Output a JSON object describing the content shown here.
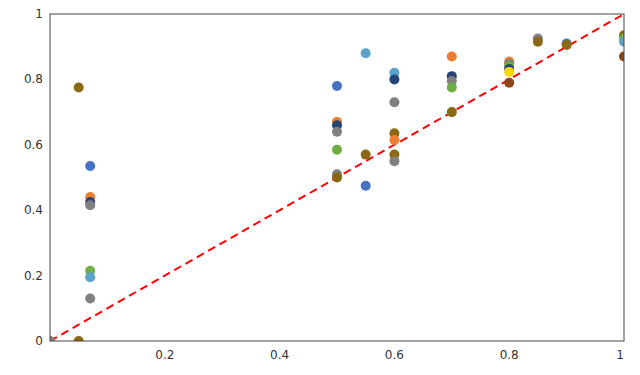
{
  "chart_data": {
    "type": "scatter",
    "xlim": [
      0,
      1
    ],
    "ylim": [
      0,
      1
    ],
    "xticks": [
      0.2,
      0.4,
      0.6,
      0.8,
      1
    ],
    "yticks": [
      0,
      0.2,
      0.4,
      0.6,
      0.8,
      1
    ],
    "grid": false,
    "series": [
      {
        "type": "line",
        "color": "red",
        "line_style": "dashed",
        "x": [
          0,
          1
        ],
        "values": [
          0,
          1
        ]
      },
      {
        "type": "scatter",
        "x": [
          0.0,
          0.05,
          0.05,
          0.07,
          0.07,
          0.07,
          0.07,
          0.07,
          0.07,
          0.07,
          0.5,
          0.5,
          0.5,
          0.5,
          0.5,
          0.5,
          0.5,
          0.55,
          0.55,
          0.55,
          0.6,
          0.6,
          0.6,
          0.6,
          0.6,
          0.6,
          0.6,
          0.7,
          0.7,
          0.7,
          0.7,
          0.7,
          0.8,
          0.8,
          0.8,
          0.8,
          0.8,
          0.8,
          0.85,
          0.85,
          0.9,
          0.9,
          1.0,
          1.0,
          1.0,
          1.0
        ],
        "values": [
          0.0,
          0.0,
          0.775,
          0.535,
          0.44,
          0.425,
          0.415,
          0.215,
          0.195,
          0.13,
          0.78,
          0.67,
          0.66,
          0.64,
          0.585,
          0.51,
          0.5,
          0.88,
          0.57,
          0.475,
          0.82,
          0.8,
          0.73,
          0.635,
          0.615,
          0.57,
          0.55,
          0.87,
          0.81,
          0.795,
          0.775,
          0.7,
          0.855,
          0.848,
          0.84,
          0.832,
          0.823,
          0.79,
          0.925,
          0.915,
          0.91,
          0.905,
          0.935,
          0.925,
          0.915,
          0.87
        ],
        "colors": [
          "#808080",
          "#8B6914",
          "#8B6914",
          "#4472C4",
          "#ED7D31",
          "#264478",
          "#808080",
          "#70AD47",
          "#5BA3C9",
          "#808080",
          "#4472C4",
          "#ED7D31",
          "#264478",
          "#808080",
          "#70AD47",
          "#808080",
          "#8B6914",
          "#5BA3C9",
          "#8B6914",
          "#4472C4",
          "#5BA3C9",
          "#264478",
          "#808080",
          "#8B6914",
          "#ED7D31",
          "#8B6914",
          "#808080",
          "#ED7D31",
          "#264478",
          "#808080",
          "#70AD47",
          "#8B6914",
          "#ED7D31",
          "#808080",
          "#70AD47",
          "#264478",
          "#FFD700",
          "#8B4513",
          "#808080",
          "#8B6914",
          "#4472C4",
          "#8B6914",
          "#8B6914",
          "#70AD47",
          "#5BA3C9",
          "#8B4513"
        ]
      }
    ]
  }
}
